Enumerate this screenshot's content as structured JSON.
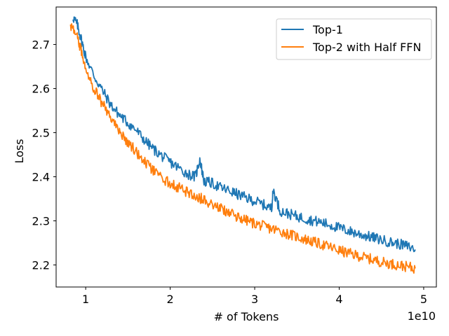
{
  "chart_data": {
    "type": "line",
    "title": "",
    "xlabel": "# of Tokens",
    "ylabel": "Loss",
    "x_offset_label": "1e10",
    "xlim": [
      0.65,
      5.15
    ],
    "ylim": [
      2.15,
      2.785
    ],
    "x_ticks": [
      {
        "value": 1,
        "label": "1"
      },
      {
        "value": 2,
        "label": "2"
      },
      {
        "value": 3,
        "label": "3"
      },
      {
        "value": 4,
        "label": "4"
      },
      {
        "value": 5,
        "label": "5"
      }
    ],
    "y_ticks": [
      {
        "value": 2.2,
        "label": "2.2"
      },
      {
        "value": 2.3,
        "label": "2.3"
      },
      {
        "value": 2.4,
        "label": "2.4"
      },
      {
        "value": 2.5,
        "label": "2.5"
      },
      {
        "value": 2.6,
        "label": "2.6"
      },
      {
        "value": 2.7,
        "label": "2.7"
      }
    ],
    "grid": false,
    "legend_position": "top-right",
    "series": [
      {
        "name": "Top-1",
        "color": "#1f77b4",
        "x": [
          0.85,
          0.9,
          0.95,
          1.0,
          1.1,
          1.2,
          1.3,
          1.4,
          1.5,
          1.6,
          1.7,
          1.8,
          1.9,
          2.0,
          2.1,
          2.2,
          2.3,
          2.35,
          2.4,
          2.5,
          2.6,
          2.7,
          2.8,
          2.9,
          3.0,
          3.1,
          3.2,
          3.22,
          3.3,
          3.4,
          3.5,
          3.6,
          3.7,
          3.8,
          3.9,
          4.0,
          4.1,
          4.2,
          4.3,
          4.4,
          4.5,
          4.6,
          4.7,
          4.8,
          4.9
        ],
        "y": [
          2.762,
          2.745,
          2.71,
          2.672,
          2.628,
          2.595,
          2.562,
          2.54,
          2.522,
          2.505,
          2.482,
          2.463,
          2.447,
          2.433,
          2.42,
          2.407,
          2.4,
          2.44,
          2.39,
          2.385,
          2.375,
          2.368,
          2.36,
          2.352,
          2.345,
          2.337,
          2.328,
          2.37,
          2.323,
          2.316,
          2.31,
          2.305,
          2.3,
          2.296,
          2.29,
          2.284,
          2.278,
          2.272,
          2.267,
          2.262,
          2.257,
          2.252,
          2.248,
          2.243,
          2.235
        ]
      },
      {
        "name": "Top-2 with Half FFN",
        "color": "#ff7f0e",
        "x": [
          0.82,
          0.9,
          0.95,
          1.0,
          1.1,
          1.2,
          1.3,
          1.4,
          1.5,
          1.6,
          1.7,
          1.8,
          1.9,
          2.0,
          2.1,
          2.2,
          2.3,
          2.4,
          2.5,
          2.6,
          2.7,
          2.8,
          2.9,
          3.0,
          3.1,
          3.2,
          3.3,
          3.4,
          3.5,
          3.6,
          3.7,
          3.8,
          3.9,
          4.0,
          4.1,
          4.2,
          4.3,
          4.4,
          4.5,
          4.6,
          4.7,
          4.8,
          4.9
        ],
        "y": [
          2.745,
          2.715,
          2.685,
          2.648,
          2.6,
          2.565,
          2.533,
          2.503,
          2.478,
          2.456,
          2.433,
          2.413,
          2.397,
          2.385,
          2.375,
          2.365,
          2.356,
          2.348,
          2.338,
          2.328,
          2.318,
          2.309,
          2.301,
          2.294,
          2.288,
          2.282,
          2.277,
          2.27,
          2.264,
          2.258,
          2.252,
          2.246,
          2.24,
          2.233,
          2.227,
          2.222,
          2.217,
          2.212,
          2.207,
          2.203,
          2.2,
          2.196,
          2.192
        ]
      }
    ]
  }
}
